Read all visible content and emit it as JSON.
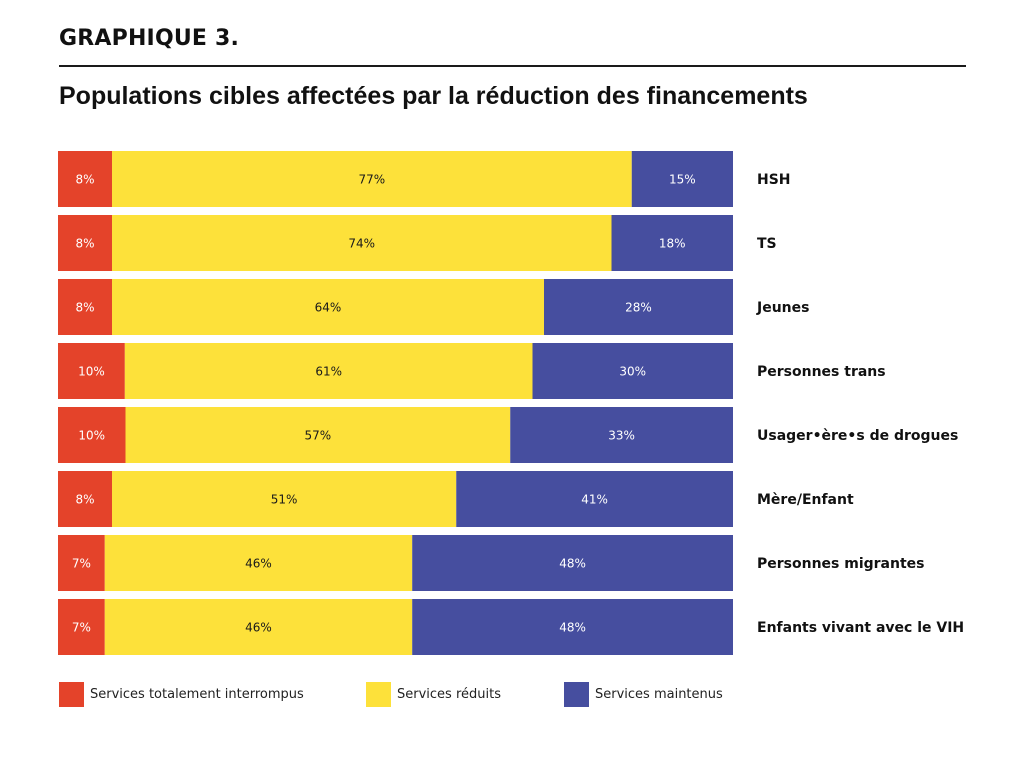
{
  "header": {
    "kicker": "GRAPHIQUE 3.",
    "title": "Populations cibles affectées par la réduction des financements"
  },
  "colors": {
    "interrompus": "#e4432a",
    "reduits": "#fde13a",
    "maintenus": "#464e9f"
  },
  "chart_data": {
    "type": "bar",
    "orientation": "horizontal",
    "stacked": true,
    "normalized_to": 100,
    "value_suffix": "%",
    "title": "Populations cibles affectées par la réduction des financements",
    "legend_position": "bottom",
    "grid": false,
    "categories": [
      "HSH",
      "TS",
      "Jeunes",
      "Personnes trans",
      "Usager•ère•s de drogues",
      "Mère/Enfant",
      "Personnes migrantes",
      "Enfants vivant avec le VIH"
    ],
    "series": [
      {
        "name": "Services totalement interrompus",
        "values": [
          8,
          8,
          8,
          10,
          10,
          8,
          7,
          7
        ]
      },
      {
        "name": "Services réduits",
        "values": [
          77,
          74,
          64,
          61,
          57,
          51,
          46,
          46
        ]
      },
      {
        "name": "Services maintenus",
        "values": [
          15,
          18,
          28,
          30,
          33,
          41,
          48,
          48
        ]
      }
    ]
  }
}
